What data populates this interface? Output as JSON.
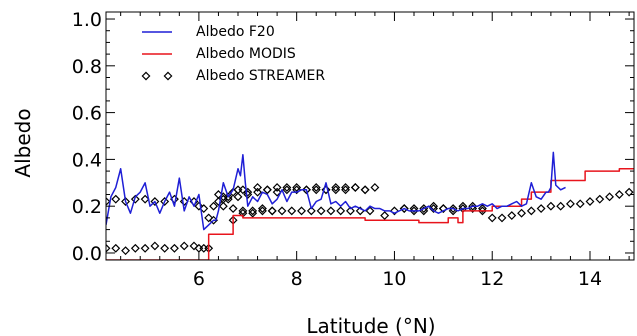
{
  "chart_data": {
    "type": "line",
    "xlabel": "Latitude (°N)",
    "ylabel": "Albedo",
    "xlim": [
      4.1,
      14.9
    ],
    "ylim": [
      -0.03,
      1.03
    ],
    "xticks": [
      6,
      8,
      10,
      12,
      14
    ],
    "xtick_labels": [
      "6",
      "8",
      "10",
      "12",
      "14"
    ],
    "yticks": [
      0.0,
      0.2,
      0.4,
      0.6,
      0.8,
      1.0
    ],
    "ytick_labels": [
      "0.0",
      "0.2",
      "0.4",
      "0.6",
      "0.8",
      "1.0"
    ],
    "legend_position": "top-left",
    "grid": false,
    "series": [
      {
        "name": "Albedo F20",
        "style": "line",
        "color": "#1f1fd6",
        "x": [
          4.1,
          4.2,
          4.3,
          4.4,
          4.5,
          4.6,
          4.7,
          4.8,
          4.9,
          5.0,
          5.1,
          5.2,
          5.3,
          5.4,
          5.5,
          5.6,
          5.7,
          5.8,
          5.9,
          6.0,
          6.1,
          6.2,
          6.3,
          6.35,
          6.4,
          6.5,
          6.6,
          6.7,
          6.8,
          6.85,
          6.9,
          6.95,
          7.0,
          7.1,
          7.2,
          7.3,
          7.4,
          7.5,
          7.6,
          7.7,
          7.8,
          7.9,
          8.0,
          8.1,
          8.2,
          8.3,
          8.4,
          8.5,
          8.6,
          8.7,
          8.8,
          8.9,
          9.0,
          9.1,
          9.2,
          9.3,
          9.4,
          9.5,
          9.6,
          9.7,
          9.8,
          9.9,
          10.0,
          10.1,
          10.2,
          10.3,
          10.4,
          10.5,
          10.6,
          10.7,
          10.8,
          10.9,
          11.0,
          11.1,
          11.2,
          11.3,
          11.4,
          11.5,
          11.6,
          11.7,
          11.8,
          11.9,
          12.0,
          12.1,
          12.2,
          12.3,
          12.4,
          12.5,
          12.6,
          12.7,
          12.8,
          12.9,
          13.0,
          13.1,
          13.15,
          13.2,
          13.25,
          13.3,
          13.4,
          13.5
        ],
        "y": [
          0.12,
          0.24,
          0.28,
          0.36,
          0.22,
          0.17,
          0.24,
          0.26,
          0.3,
          0.2,
          0.22,
          0.17,
          0.22,
          0.26,
          0.2,
          0.32,
          0.18,
          0.24,
          0.2,
          0.25,
          0.1,
          0.12,
          0.14,
          0.14,
          0.18,
          0.3,
          0.24,
          0.27,
          0.36,
          0.33,
          0.42,
          0.3,
          0.2,
          0.24,
          0.22,
          0.26,
          0.25,
          0.21,
          0.23,
          0.27,
          0.22,
          0.26,
          0.26,
          0.27,
          0.27,
          0.19,
          0.22,
          0.23,
          0.3,
          0.21,
          0.22,
          0.2,
          0.22,
          0.19,
          0.2,
          0.19,
          0.18,
          0.2,
          0.19,
          0.19,
          0.18,
          0.18,
          0.17,
          0.18,
          0.19,
          0.18,
          0.18,
          0.18,
          0.19,
          0.2,
          0.18,
          0.17,
          0.18,
          0.19,
          0.19,
          0.18,
          0.19,
          0.19,
          0.2,
          0.2,
          0.21,
          0.2,
          0.21,
          0.19,
          0.2,
          0.2,
          0.21,
          0.22,
          0.2,
          0.21,
          0.3,
          0.24,
          0.23,
          0.26,
          0.26,
          0.28,
          0.43,
          0.29,
          0.27,
          0.28
        ]
      },
      {
        "name": "Albedo MODIS",
        "style": "step",
        "color": "#e8141c",
        "x": [
          4.1,
          6.2,
          6.2,
          6.7,
          6.7,
          6.9,
          6.9,
          9.4,
          9.4,
          10.5,
          10.5,
          11.1,
          11.1,
          11.3,
          11.3,
          11.4,
          11.4,
          12.0,
          12.0,
          12.6,
          12.6,
          12.8,
          12.8,
          13.2,
          13.2,
          13.9,
          13.9,
          14.6,
          14.6,
          14.9
        ],
        "y": [
          -0.03,
          -0.03,
          0.08,
          0.08,
          0.16,
          0.16,
          0.15,
          0.15,
          0.14,
          0.14,
          0.13,
          0.13,
          0.15,
          0.15,
          0.13,
          0.13,
          0.18,
          0.18,
          0.2,
          0.2,
          0.23,
          0.23,
          0.26,
          0.26,
          0.31,
          0.31,
          0.35,
          0.35,
          0.36,
          0.36
        ]
      },
      {
        "name": "Albedo STREAMER",
        "style": "diamond",
        "color": "#000000",
        "x": [
          4.1,
          4.3,
          4.5,
          4.7,
          4.9,
          5.1,
          5.3,
          5.5,
          5.7,
          5.9,
          6.0,
          6.1,
          6.2,
          6.3,
          6.4,
          6.5,
          6.6,
          6.7,
          6.8,
          6.9,
          7.0,
          7.2,
          7.4,
          7.6,
          7.8,
          8.0,
          8.2,
          8.4,
          8.6,
          8.8,
          9.0,
          9.2,
          9.4,
          9.6,
          9.8,
          10.0,
          10.2,
          10.4,
          10.6,
          10.8,
          11.0,
          11.2,
          11.4,
          11.6,
          11.8,
          12.0,
          12.2,
          12.4,
          12.6,
          12.8,
          13.0,
          13.2,
          13.4,
          13.6,
          13.8,
          14.0,
          14.2,
          14.4,
          14.6,
          14.8,
          4.1,
          4.3,
          4.5,
          4.7,
          4.9,
          5.1,
          5.3,
          5.5,
          5.7,
          5.9,
          6.0,
          6.1,
          6.2,
          6.7,
          6.9,
          7.1,
          7.3,
          7.5,
          7.7,
          7.9,
          8.1,
          8.3,
          8.5,
          8.7,
          8.9,
          9.1,
          9.3,
          9.5,
          10.2,
          10.4,
          10.6,
          10.8,
          11.0,
          11.2,
          11.4,
          11.6,
          11.8,
          6.4,
          6.5,
          6.6,
          6.8,
          7.0,
          7.2,
          7.4,
          7.6,
          7.8,
          8.0,
          8.2,
          8.4,
          8.6,
          8.8,
          9.0,
          9.2,
          9.4,
          6.3,
          6.5,
          6.7,
          6.9,
          7.1,
          7.3,
          7.5
        ],
        "y": [
          0.22,
          0.23,
          0.22,
          0.23,
          0.23,
          0.22,
          0.22,
          0.23,
          0.22,
          0.22,
          0.2,
          0.19,
          0.15,
          0.14,
          0.22,
          0.23,
          0.24,
          0.26,
          0.27,
          0.27,
          0.26,
          0.26,
          0.27,
          0.26,
          0.27,
          0.28,
          0.27,
          0.27,
          0.27,
          0.28,
          0.27,
          0.28,
          0.27,
          0.28,
          0.16,
          0.18,
          0.19,
          0.19,
          0.18,
          0.19,
          0.19,
          0.19,
          0.2,
          0.19,
          0.18,
          0.15,
          0.15,
          0.16,
          0.17,
          0.18,
          0.19,
          0.2,
          0.2,
          0.21,
          0.21,
          0.22,
          0.23,
          0.24,
          0.25,
          0.26,
          0.02,
          0.02,
          0.01,
          0.02,
          0.02,
          0.03,
          0.02,
          0.02,
          0.03,
          0.03,
          0.02,
          0.02,
          0.02,
          0.14,
          0.17,
          0.17,
          0.18,
          0.18,
          0.18,
          0.18,
          0.18,
          0.18,
          0.18,
          0.18,
          0.18,
          0.18,
          0.18,
          0.18,
          0.19,
          0.18,
          0.19,
          0.2,
          0.19,
          0.18,
          0.19,
          0.2,
          0.19,
          0.25,
          0.24,
          0.23,
          0.24,
          0.25,
          0.28,
          0.27,
          0.28,
          0.28,
          0.27,
          0.27,
          0.28,
          0.27,
          0.27,
          0.28,
          0.28,
          0.27,
          0.2,
          0.2,
          0.19,
          0.18,
          0.18,
          0.19,
          0.18
        ]
      }
    ]
  }
}
